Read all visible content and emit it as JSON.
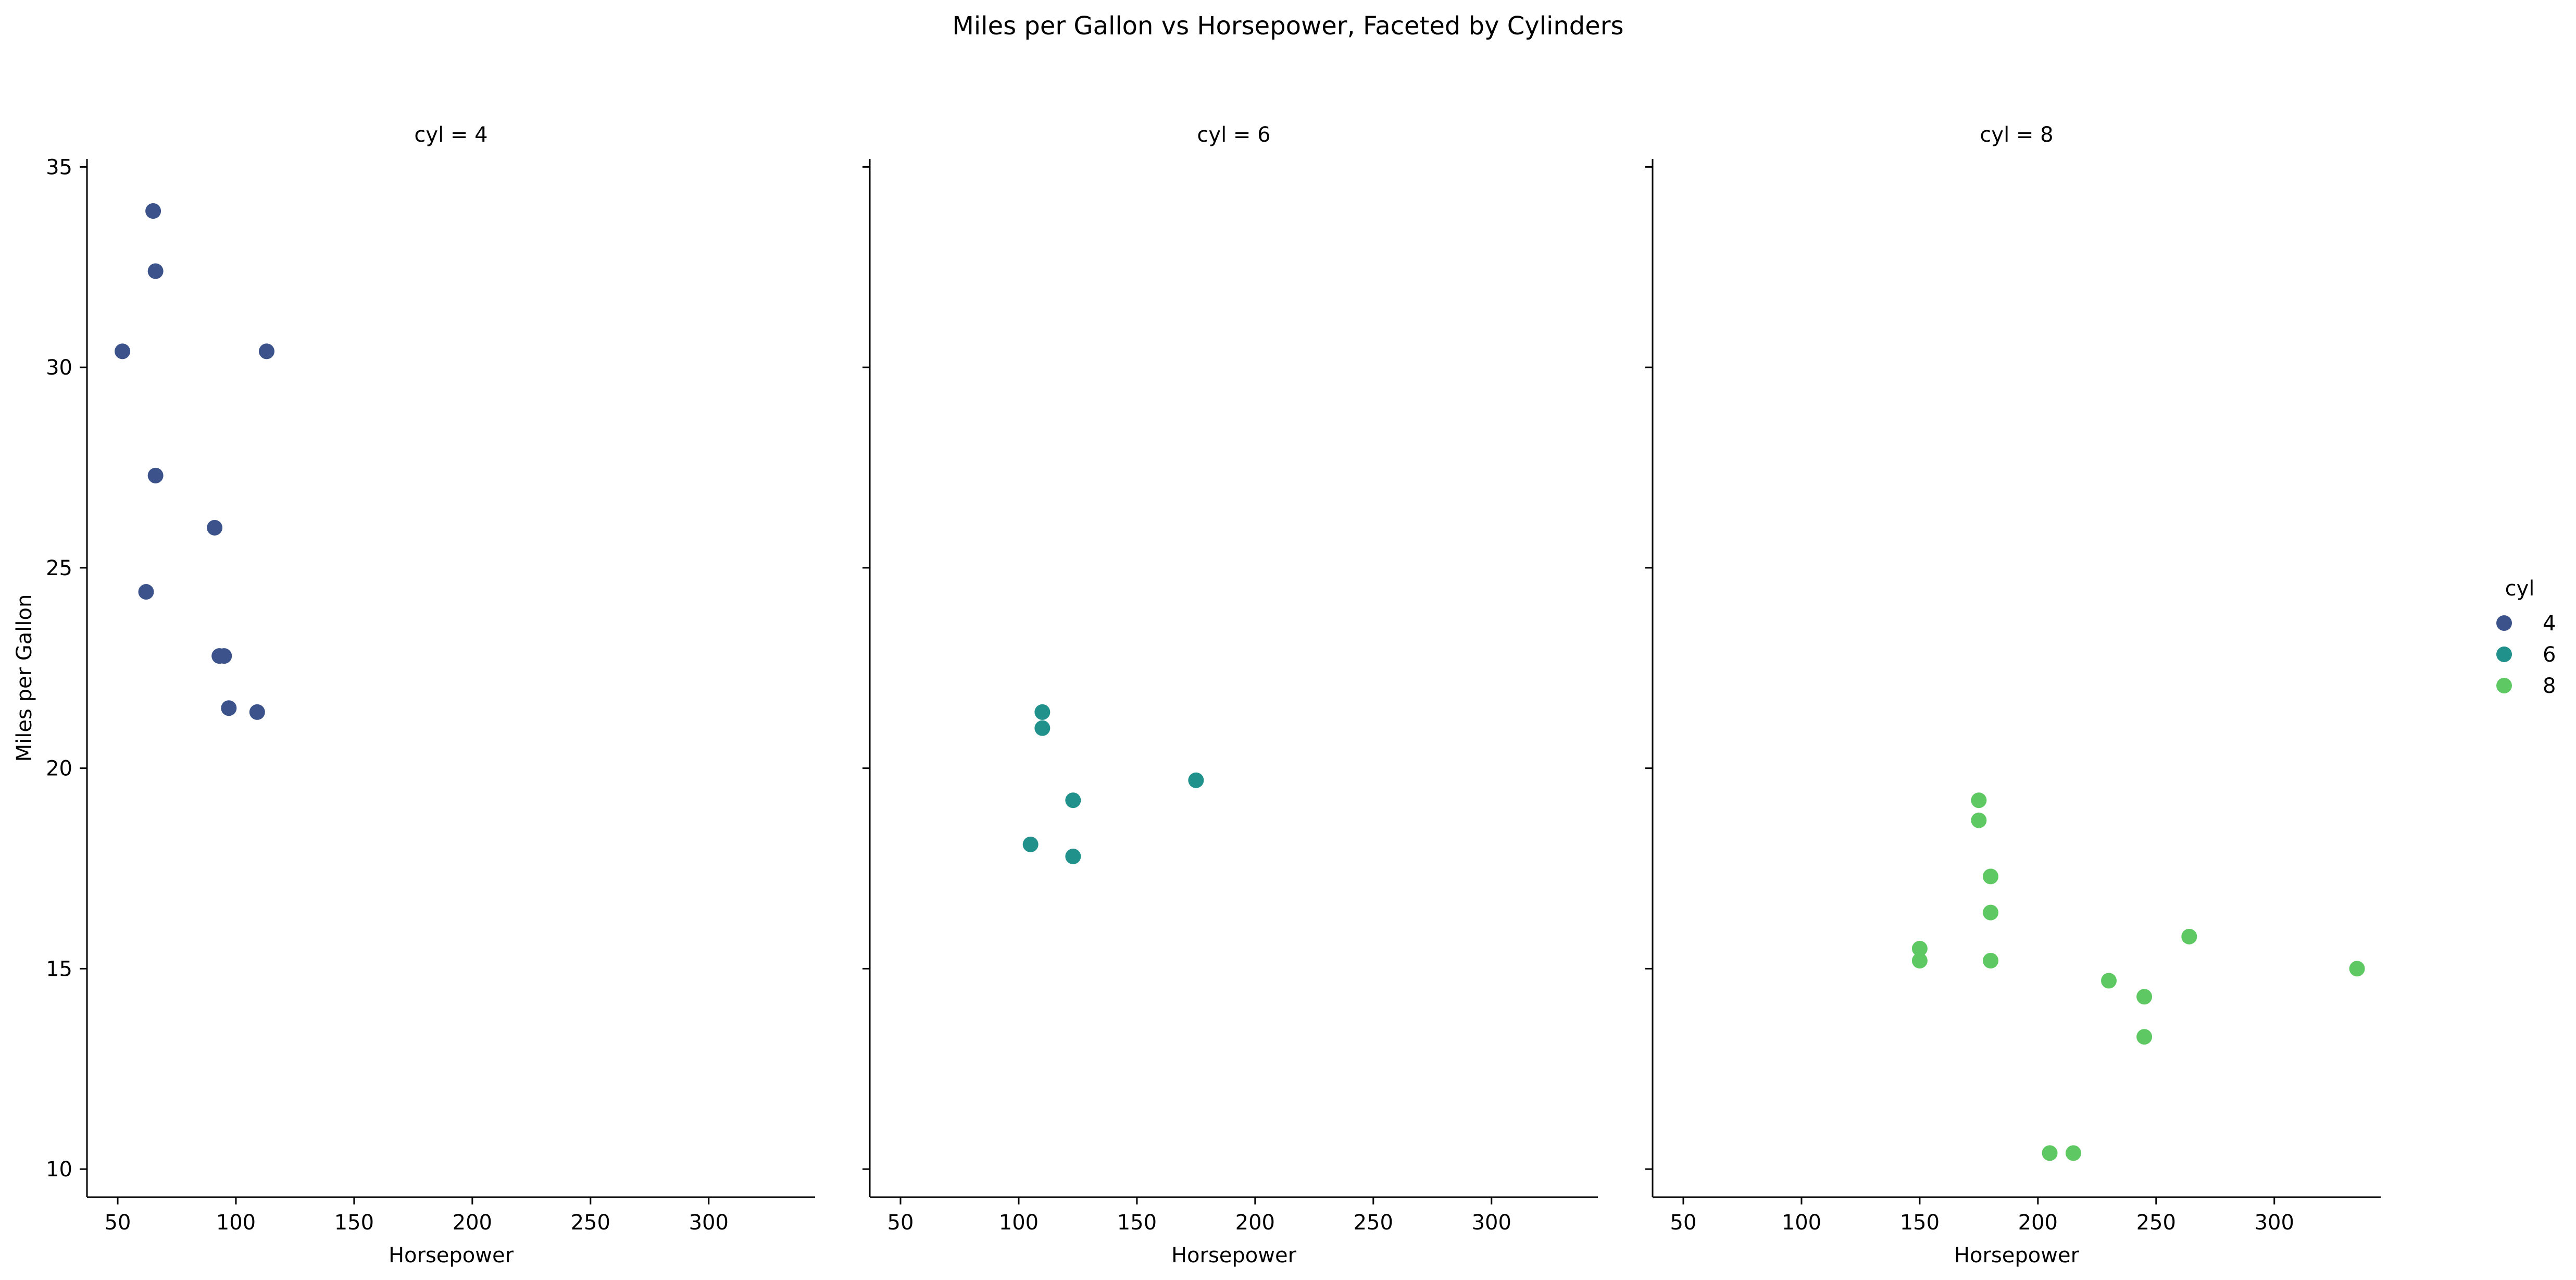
{
  "chart_data": {
    "type": "scatter",
    "title": "Miles per Gallon vs Horsepower, Faceted by Cylinders",
    "xlabel": "Horsepower",
    "ylabel": "Miles per Gallon",
    "xlim": [
      37,
      345
    ],
    "ylim": [
      9.3,
      35.2
    ],
    "x_ticks": [
      50,
      100,
      150,
      200,
      250,
      300
    ],
    "y_ticks": [
      10,
      15,
      20,
      25,
      30,
      35
    ],
    "grid": false,
    "shared_y": true,
    "legend": {
      "title": "cyl",
      "placement": "right",
      "entries": [
        {
          "label": "4",
          "color": "#3b528b"
        },
        {
          "label": "6",
          "color": "#21918c"
        },
        {
          "label": "8",
          "color": "#5ec962"
        }
      ]
    },
    "facets": [
      {
        "title": "cyl = 4",
        "color": "#3b528b",
        "points": [
          {
            "x": 65,
            "y": 33.9
          },
          {
            "x": 66,
            "y": 32.4
          },
          {
            "x": 52,
            "y": 30.4
          },
          {
            "x": 113,
            "y": 30.4
          },
          {
            "x": 66,
            "y": 27.3
          },
          {
            "x": 91,
            "y": 26.0
          },
          {
            "x": 62,
            "y": 24.4
          },
          {
            "x": 93,
            "y": 22.8
          },
          {
            "x": 95,
            "y": 22.8
          },
          {
            "x": 97,
            "y": 21.5
          },
          {
            "x": 109,
            "y": 21.4
          }
        ]
      },
      {
        "title": "cyl = 6",
        "color": "#21918c",
        "points": [
          {
            "x": 110,
            "y": 21.4
          },
          {
            "x": 110,
            "y": 21.0
          },
          {
            "x": 175,
            "y": 19.7
          },
          {
            "x": 123,
            "y": 19.2
          },
          {
            "x": 105,
            "y": 18.1
          },
          {
            "x": 123,
            "y": 17.8
          }
        ]
      },
      {
        "title": "cyl = 8",
        "color": "#5ec962",
        "points": [
          {
            "x": 175,
            "y": 19.2
          },
          {
            "x": 175,
            "y": 18.7
          },
          {
            "x": 180,
            "y": 17.3
          },
          {
            "x": 180,
            "y": 16.4
          },
          {
            "x": 264,
            "y": 15.8
          },
          {
            "x": 150,
            "y": 15.5
          },
          {
            "x": 150,
            "y": 15.2
          },
          {
            "x": 180,
            "y": 15.2
          },
          {
            "x": 335,
            "y": 15.0
          },
          {
            "x": 230,
            "y": 14.7
          },
          {
            "x": 245,
            "y": 14.3
          },
          {
            "x": 245,
            "y": 13.3
          },
          {
            "x": 205,
            "y": 10.4
          },
          {
            "x": 215,
            "y": 10.4
          }
        ]
      }
    ]
  }
}
